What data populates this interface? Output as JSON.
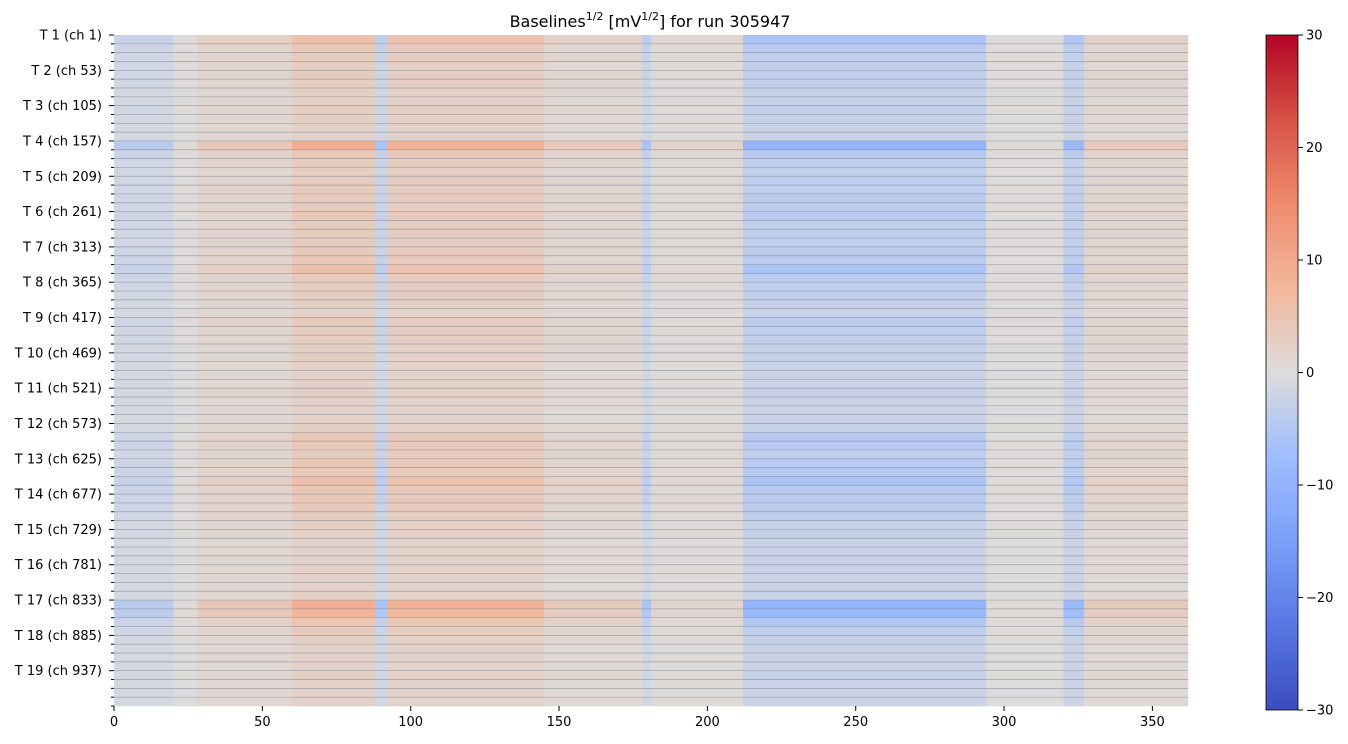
{
  "chart_data": {
    "type": "heatmap",
    "title": {
      "prefix": "Baselines",
      "prefix_sup": "1/2",
      "unit_open": " [mV",
      "unit_sup": "1/2",
      "suffix": "] for run 305947"
    },
    "xlabel": "",
    "ylabel": "",
    "x_range": [
      0,
      362
    ],
    "x_ticks": [
      0,
      50,
      100,
      150,
      200,
      250,
      300,
      350
    ],
    "y_tick_labels": [
      "T 1 (ch 1)",
      "T 2 (ch 53)",
      "T 3 (ch 105)",
      "T 4 (ch 157)",
      "T 5 (ch 209)",
      "T 6 (ch 261)",
      "T 7 (ch 313)",
      "T 8 (ch 365)",
      "T 9 (ch 417)",
      "T 10 (ch 469)",
      "T 11 (ch 521)",
      "T 12 (ch 573)",
      "T 13 (ch 625)",
      "T 14 (ch 677)",
      "T 15 (ch 729)",
      "T 16 (ch 781)",
      "T 17 (ch 833)",
      "T 18 (ch 885)",
      "T 19 (ch 937)"
    ],
    "rows_per_group": 4,
    "n_rows": 76,
    "colormap": "coolwarm",
    "colorbar": {
      "range": [
        -30,
        30
      ],
      "ticks": [
        30,
        20,
        10,
        0,
        -10,
        -20,
        -30
      ],
      "tick_labels": [
        "30",
        "20",
        "10",
        "0",
        "−10",
        "−20",
        "−30"
      ]
    },
    "column_profile": [
      {
        "x": [
          0,
          20
        ],
        "value": -3.5
      },
      {
        "x": [
          20,
          28
        ],
        "value": 0.5
      },
      {
        "x": [
          28,
          60
        ],
        "value": 3.5
      },
      {
        "x": [
          60,
          88
        ],
        "value": 7.5
      },
      {
        "x": [
          88,
          92
        ],
        "value": -5
      },
      {
        "x": [
          92,
          145
        ],
        "value": 7
      },
      {
        "x": [
          145,
          178
        ],
        "value": 3
      },
      {
        "x": [
          178,
          181
        ],
        "value": -5
      },
      {
        "x": [
          181,
          212
        ],
        "value": 1.5
      },
      {
        "x": [
          212,
          294
        ],
        "value": -8
      },
      {
        "x": [
          294,
          320
        ],
        "value": 0.5
      },
      {
        "x": [
          320,
          327
        ],
        "value": -7
      },
      {
        "x": [
          327,
          362
        ],
        "value": 3
      }
    ],
    "row_intensity": [
      0.75,
      0.55,
      0.45,
      0.4,
      0.45,
      0.4,
      0.35,
      0.35,
      0.4,
      0.35,
      0.3,
      0.3,
      1.2,
      0.6,
      0.45,
      0.4,
      0.45,
      0.45,
      0.5,
      0.45,
      0.55,
      0.45,
      0.45,
      0.45,
      0.5,
      0.55,
      0.75,
      0.5,
      0.45,
      0.4,
      0.35,
      0.3,
      0.5,
      0.45,
      0.4,
      0.35,
      0.35,
      0.3,
      0.3,
      0.3,
      0.35,
      0.3,
      0.3,
      0.3,
      0.35,
      0.55,
      0.55,
      0.45,
      0.55,
      0.55,
      0.75,
      0.6,
      0.55,
      0.5,
      0.45,
      0.35,
      0.35,
      0.3,
      0.3,
      0.3,
      0.3,
      0.3,
      0.3,
      0.3,
      1.2,
      1.05,
      0.65,
      0.45,
      0.35,
      0.3,
      0.3,
      0.3,
      0.35,
      0.3,
      0.3,
      0.3
    ]
  }
}
